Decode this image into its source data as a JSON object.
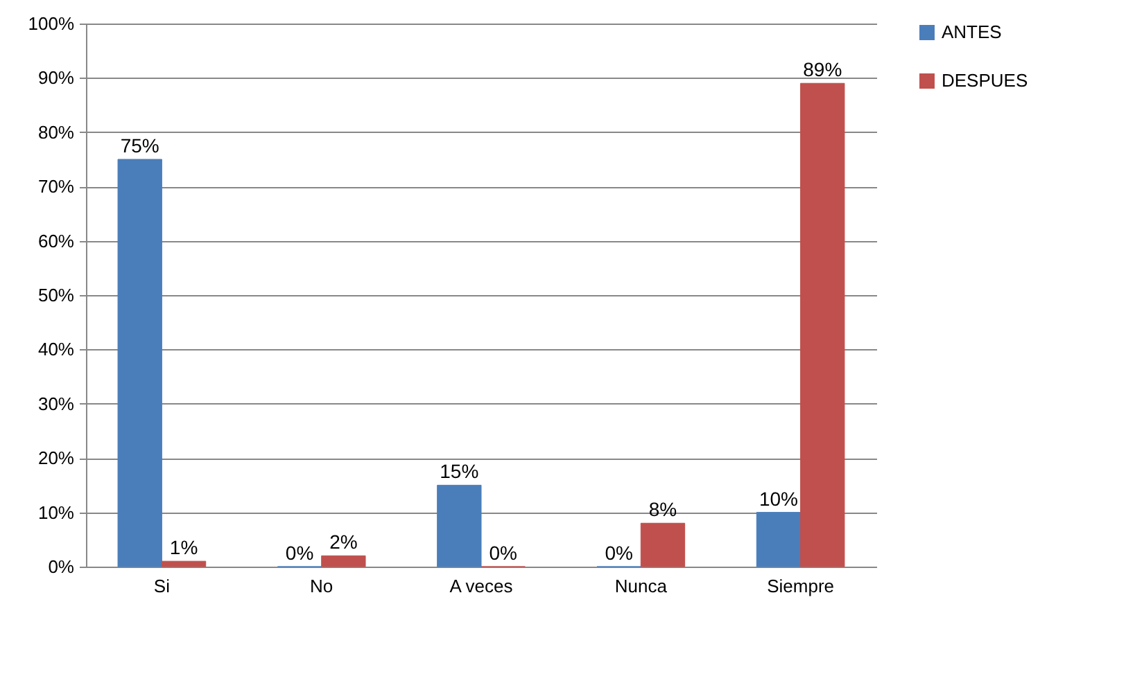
{
  "chart_data": {
    "type": "bar",
    "categories": [
      "Si",
      "No",
      "A veces",
      "Nunca",
      "Siempre"
    ],
    "series": [
      {
        "name": "ANTES",
        "color": "#4a7ebb",
        "values": [
          75,
          0,
          15,
          0,
          10
        ],
        "value_labels": [
          "75%",
          "0%",
          "15%",
          "0%",
          "10%"
        ]
      },
      {
        "name": "DESPUES",
        "color": "#c0504d",
        "values": [
          1,
          2,
          0,
          8,
          89
        ],
        "value_labels": [
          "1%",
          "2%",
          "0%",
          "8%",
          "89%"
        ]
      }
    ],
    "ylim": [
      0,
      100
    ],
    "yticks": [
      {
        "value": 0,
        "label": "0%"
      },
      {
        "value": 10,
        "label": "10%"
      },
      {
        "value": 20,
        "label": "20%"
      },
      {
        "value": 30,
        "label": "30%"
      },
      {
        "value": 40,
        "label": "40%"
      },
      {
        "value": 50,
        "label": "50%"
      },
      {
        "value": 60,
        "label": "60%"
      },
      {
        "value": 70,
        "label": "70%"
      },
      {
        "value": 80,
        "label": "80%"
      },
      {
        "value": 90,
        "label": "90%"
      },
      {
        "value": 100,
        "label": "100%"
      }
    ],
    "grid": "y",
    "legend": "right"
  }
}
